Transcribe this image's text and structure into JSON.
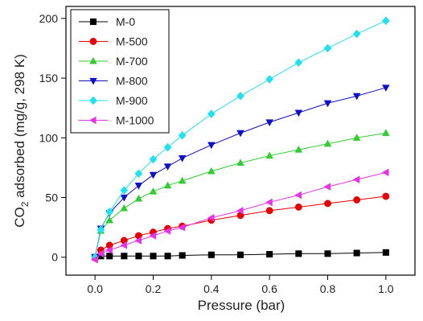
{
  "chart_data": {
    "type": "line",
    "x_label": "Pressure (bar)",
    "y_label": {
      "prefix": "CO",
      "subscript": "2",
      "suffix": " adsorbed (mg/g, 298 K)"
    },
    "x": [
      0,
      0.02,
      0.05,
      0.1,
      0.15,
      0.2,
      0.25,
      0.3,
      0.4,
      0.5,
      0.6,
      0.7,
      0.8,
      0.9,
      1.0
    ],
    "series": [
      {
        "name": "M-0",
        "color": "#000000",
        "marker": "square",
        "values": [
          0,
          1,
          1,
          1,
          1,
          1,
          1,
          1.5,
          2,
          2,
          2.5,
          3,
          3,
          3.5,
          4
        ]
      },
      {
        "name": "M-500",
        "color": "#e60000",
        "marker": "circle",
        "values": [
          0,
          6,
          10,
          14,
          18,
          21,
          24,
          26,
          31,
          35,
          39,
          42,
          45,
          48,
          51
        ]
      },
      {
        "name": "M-700",
        "color": "#33cc33",
        "marker": "triangle-up",
        "values": [
          0,
          22,
          31,
          41,
          49,
          55,
          60,
          64,
          72,
          79,
          85,
          90,
          95,
          100,
          104
        ]
      },
      {
        "name": "M-800",
        "color": "#1010c8",
        "marker": "triangle-down",
        "values": [
          0,
          24,
          37,
          50,
          60,
          69,
          76,
          83,
          94,
          104,
          113,
          121,
          129,
          135,
          142
        ]
      },
      {
        "name": "M-900",
        "color": "#22e0ee",
        "marker": "diamond",
        "values": [
          0,
          23,
          38,
          56,
          70,
          82,
          92,
          102,
          120,
          135,
          149,
          163,
          175,
          187,
          198
        ]
      },
      {
        "name": "M-1000",
        "color": "#e633e6",
        "marker": "triangle-left",
        "values": [
          -2,
          3,
          6,
          10,
          14,
          18,
          22,
          25,
          33,
          39,
          46,
          52,
          59,
          65,
          71
        ]
      }
    ],
    "xlim": [
      -0.1,
      1.1
    ],
    "ylim": [
      -15,
      210
    ],
    "xticks": [
      {
        "value": 0,
        "label": "0.0"
      },
      {
        "value": 0.2,
        "label": "0.2"
      },
      {
        "value": 0.4,
        "label": "0.4"
      },
      {
        "value": 0.6,
        "label": "0.6"
      },
      {
        "value": 0.8,
        "label": "0.8"
      },
      {
        "value": 1.0,
        "label": "1.0"
      }
    ],
    "yticks": [
      0,
      50,
      100,
      150,
      200
    ],
    "legend": "upper-left"
  }
}
